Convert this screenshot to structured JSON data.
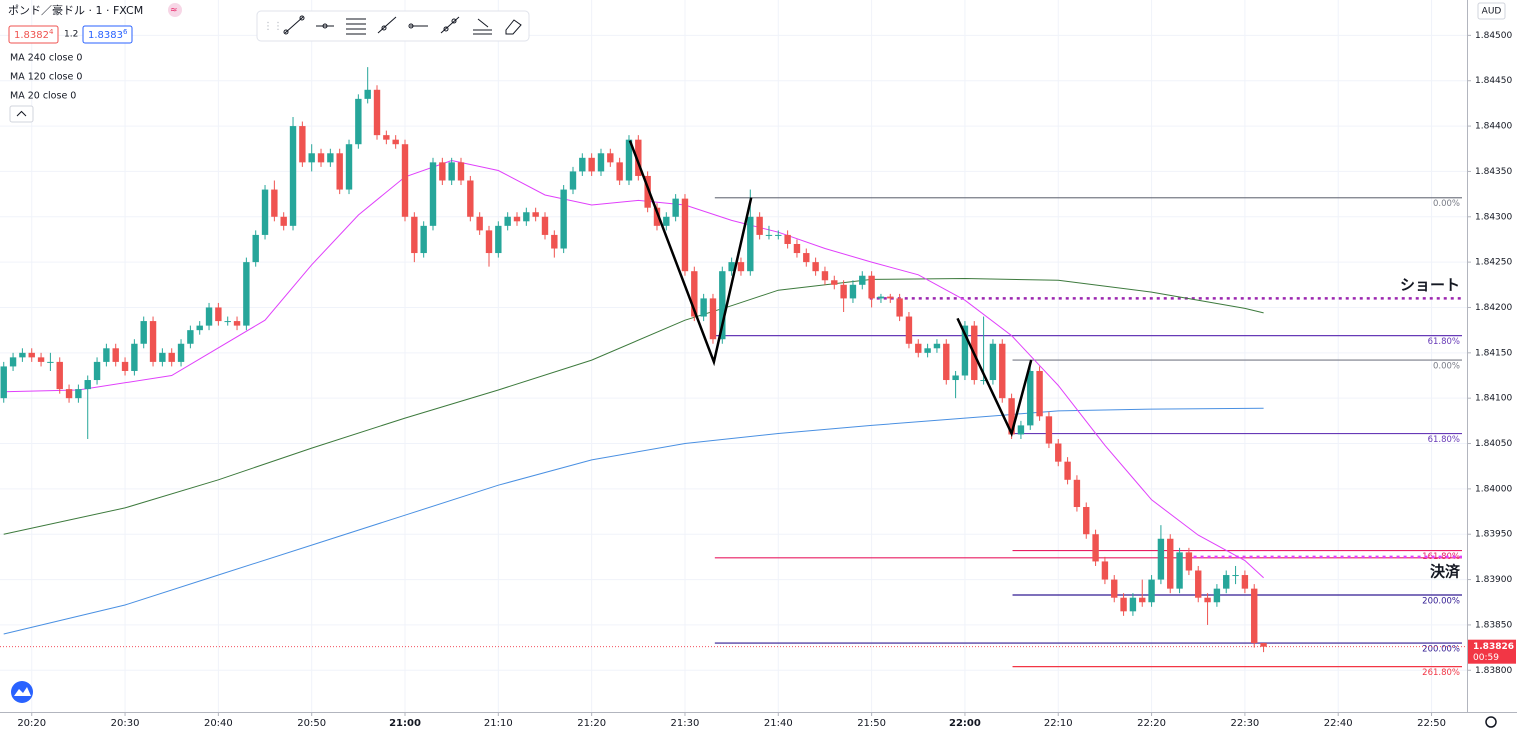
{
  "header": {
    "title": "ポンド／豪ドル · 1 · FXCM",
    "bid": "1.8382",
    "bid_pip": "4",
    "spread": "1.2",
    "ask": "1.8383",
    "ask_pip": "6",
    "indicators": [
      "MA 240 close 0",
      "MA 120 close 0",
      "MA 20 close 0"
    ],
    "currency": "AUD"
  },
  "chart_data": {
    "type": "candlestick",
    "up_color": "#26a69a",
    "down_color": "#ef5350",
    "grid": true,
    "xlim": [
      1216.6,
      1373.8
    ],
    "ylim": [
      1.83754,
      1.84539
    ],
    "xticks": [
      {
        "value": 1220,
        "label": "20:20"
      },
      {
        "value": 1230,
        "label": "20:30"
      },
      {
        "value": 1240,
        "label": "20:40"
      },
      {
        "value": 1250,
        "label": "20:50"
      },
      {
        "value": 1260,
        "label": "21:00"
      },
      {
        "value": 1270,
        "label": "21:10"
      },
      {
        "value": 1280,
        "label": "21:20"
      },
      {
        "value": 1290,
        "label": "21:30"
      },
      {
        "value": 1300,
        "label": "21:40"
      },
      {
        "value": 1310,
        "label": "21:50"
      },
      {
        "value": 1320,
        "label": "22:00"
      },
      {
        "value": 1330,
        "label": "22:10"
      },
      {
        "value": 1340,
        "label": "22:20"
      },
      {
        "value": 1350,
        "label": "22:30"
      },
      {
        "value": 1360,
        "label": "22:40"
      },
      {
        "value": 1370,
        "label": "22:50"
      }
    ],
    "yticks": [
      {
        "value": 1.845,
        "label": "1.84500"
      },
      {
        "value": 1.8445,
        "label": "1.84450"
      },
      {
        "value": 1.844,
        "label": "1.84400"
      },
      {
        "value": 1.8435,
        "label": "1.84350"
      },
      {
        "value": 1.843,
        "label": "1.84300"
      },
      {
        "value": 1.8425,
        "label": "1.84250"
      },
      {
        "value": 1.842,
        "label": "1.84200"
      },
      {
        "value": 1.8415,
        "label": "1.84150"
      },
      {
        "value": 1.841,
        "label": "1.84100"
      },
      {
        "value": 1.8405,
        "label": "1.84050"
      },
      {
        "value": 1.84,
        "label": "1.84000"
      },
      {
        "value": 1.8395,
        "label": "1.83950"
      },
      {
        "value": 1.839,
        "label": "1.83900"
      },
      {
        "value": 1.8385,
        "label": "1.83850"
      },
      {
        "value": 1.838,
        "label": "1.83800"
      }
    ],
    "x": [
      1217,
      1218,
      1219,
      1220,
      1221,
      1222,
      1223,
      1224,
      1225,
      1226,
      1227,
      1228,
      1229,
      1230,
      1231,
      1232,
      1233,
      1234,
      1235,
      1236,
      1237,
      1238,
      1239,
      1240,
      1241,
      1242,
      1243,
      1244,
      1245,
      1246,
      1247,
      1248,
      1249,
      1250,
      1251,
      1252,
      1253,
      1254,
      1255,
      1256,
      1257,
      1258,
      1259,
      1260,
      1261,
      1262,
      1263,
      1264,
      1265,
      1266,
      1267,
      1268,
      1269,
      1270,
      1271,
      1272,
      1273,
      1274,
      1275,
      1276,
      1277,
      1278,
      1279,
      1280,
      1281,
      1282,
      1283,
      1284,
      1285,
      1286,
      1287,
      1288,
      1289,
      1290,
      1291,
      1292,
      1293,
      1294,
      1295,
      1296,
      1297,
      1298,
      1299,
      1300,
      1301,
      1302,
      1303,
      1304,
      1305,
      1306,
      1307,
      1308,
      1309,
      1310,
      1311,
      1312,
      1313,
      1314,
      1315,
      1316,
      1317,
      1318,
      1319,
      1320,
      1321,
      1322,
      1323,
      1324,
      1325,
      1326,
      1327,
      1328,
      1329,
      1330,
      1331,
      1332,
      1333,
      1334,
      1335,
      1336,
      1337,
      1338,
      1339,
      1340,
      1341,
      1342,
      1343,
      1344,
      1345,
      1346,
      1347,
      1348,
      1349,
      1350,
      1351,
      1352
    ],
    "ohlc": [
      [
        1.841,
        1.8414,
        1.84095,
        1.84135
      ],
      [
        1.84135,
        1.8415,
        1.8413,
        1.84145
      ],
      [
        1.84145,
        1.84155,
        1.8414,
        1.8415
      ],
      [
        1.8415,
        1.84155,
        1.8414,
        1.84145
      ],
      [
        1.84145,
        1.8415,
        1.84135,
        1.8414
      ],
      [
        1.8414,
        1.8415,
        1.8413,
        1.8414
      ],
      [
        1.8414,
        1.84145,
        1.84105,
        1.8411
      ],
      [
        1.8411,
        1.84115,
        1.84095,
        1.841
      ],
      [
        1.841,
        1.84115,
        1.84095,
        1.8411
      ],
      [
        1.8411,
        1.84125,
        1.84055,
        1.8412
      ],
      [
        1.8412,
        1.84145,
        1.84115,
        1.8414
      ],
      [
        1.8414,
        1.8416,
        1.84135,
        1.84155
      ],
      [
        1.84155,
        1.8416,
        1.84135,
        1.8414
      ],
      [
        1.8414,
        1.84145,
        1.84125,
        1.8413
      ],
      [
        1.8413,
        1.84165,
        1.84125,
        1.8416
      ],
      [
        1.8416,
        1.8419,
        1.84155,
        1.84185
      ],
      [
        1.84185,
        1.8419,
        1.84135,
        1.8414
      ],
      [
        1.8414,
        1.84155,
        1.84135,
        1.8415
      ],
      [
        1.8415,
        1.84155,
        1.84135,
        1.8414
      ],
      [
        1.8414,
        1.84165,
        1.84135,
        1.8416
      ],
      [
        1.8416,
        1.8418,
        1.84155,
        1.84175
      ],
      [
        1.84175,
        1.84185,
        1.8417,
        1.8418
      ],
      [
        1.8418,
        1.84205,
        1.84175,
        1.842
      ],
      [
        1.842,
        1.84205,
        1.8418,
        1.84185
      ],
      [
        1.84185,
        1.8419,
        1.8418,
        1.84185
      ],
      [
        1.84185,
        1.8419,
        1.84175,
        1.8418
      ],
      [
        1.8418,
        1.84255,
        1.84175,
        1.8425
      ],
      [
        1.8425,
        1.84285,
        1.84245,
        1.8428
      ],
      [
        1.8428,
        1.84335,
        1.84275,
        1.8433
      ],
      [
        1.8433,
        1.8434,
        1.84295,
        1.843
      ],
      [
        1.843,
        1.84305,
        1.84285,
        1.8429
      ],
      [
        1.8429,
        1.8441,
        1.84285,
        1.844
      ],
      [
        1.844,
        1.84405,
        1.84355,
        1.8436
      ],
      [
        1.8436,
        1.8438,
        1.8435,
        1.8437
      ],
      [
        1.8437,
        1.84375,
        1.84355,
        1.8436
      ],
      [
        1.8436,
        1.84375,
        1.84355,
        1.8437
      ],
      [
        1.8437,
        1.84375,
        1.84325,
        1.8433
      ],
      [
        1.8433,
        1.84385,
        1.84325,
        1.8438
      ],
      [
        1.8438,
        1.84435,
        1.84375,
        1.8443
      ],
      [
        1.8443,
        1.84465,
        1.84425,
        1.8444
      ],
      [
        1.8444,
        1.84445,
        1.84385,
        1.8439
      ],
      [
        1.8439,
        1.84395,
        1.8438,
        1.84385
      ],
      [
        1.84385,
        1.8439,
        1.84375,
        1.8438
      ],
      [
        1.8438,
        1.84385,
        1.84295,
        1.843
      ],
      [
        1.843,
        1.84305,
        1.8425,
        1.8426
      ],
      [
        1.8426,
        1.84295,
        1.84255,
        1.8429
      ],
      [
        1.8429,
        1.84365,
        1.84285,
        1.8436
      ],
      [
        1.8436,
        1.84365,
        1.84335,
        1.8434
      ],
      [
        1.8434,
        1.84365,
        1.84335,
        1.8436
      ],
      [
        1.8436,
        1.84365,
        1.84335,
        1.8434
      ],
      [
        1.8434,
        1.84345,
        1.84295,
        1.843
      ],
      [
        1.843,
        1.84305,
        1.8428,
        1.84285
      ],
      [
        1.84285,
        1.8429,
        1.84245,
        1.8426
      ],
      [
        1.8426,
        1.84295,
        1.84255,
        1.8429
      ],
      [
        1.8429,
        1.84305,
        1.84285,
        1.843
      ],
      [
        1.843,
        1.84305,
        1.8429,
        1.84295
      ],
      [
        1.84295,
        1.8431,
        1.8429,
        1.84305
      ],
      [
        1.84305,
        1.8431,
        1.84295,
        1.843
      ],
      [
        1.843,
        1.84305,
        1.84275,
        1.8428
      ],
      [
        1.8428,
        1.84285,
        1.84255,
        1.84265
      ],
      [
        1.84265,
        1.84335,
        1.8426,
        1.8433
      ],
      [
        1.8433,
        1.84355,
        1.84325,
        1.8435
      ],
      [
        1.8435,
        1.8437,
        1.84345,
        1.84365
      ],
      [
        1.84365,
        1.8437,
        1.84345,
        1.8435
      ],
      [
        1.8435,
        1.84375,
        1.84345,
        1.8437
      ],
      [
        1.8437,
        1.84375,
        1.84355,
        1.8436
      ],
      [
        1.8436,
        1.84365,
        1.84335,
        1.8434
      ],
      [
        1.8434,
        1.8439,
        1.84335,
        1.84385
      ],
      [
        1.84385,
        1.8439,
        1.8434,
        1.84345
      ],
      [
        1.84345,
        1.8435,
        1.84305,
        1.8431
      ],
      [
        1.8431,
        1.84315,
        1.84285,
        1.8429
      ],
      [
        1.8429,
        1.84305,
        1.84285,
        1.843
      ],
      [
        1.843,
        1.84325,
        1.84295,
        1.8432
      ],
      [
        1.8432,
        1.84325,
        1.84235,
        1.8424
      ],
      [
        1.8424,
        1.84245,
        1.84185,
        1.8419
      ],
      [
        1.8419,
        1.84215,
        1.84185,
        1.8421
      ],
      [
        1.8421,
        1.84215,
        1.8416,
        1.84165
      ],
      [
        1.84165,
        1.84245,
        1.8416,
        1.8424
      ],
      [
        1.8424,
        1.84255,
        1.84235,
        1.8425
      ],
      [
        1.8425,
        1.84255,
        1.84235,
        1.8424
      ],
      [
        1.8424,
        1.8433,
        1.84235,
        1.843
      ],
      [
        1.843,
        1.84305,
        1.84275,
        1.8428
      ],
      [
        1.8428,
        1.8429,
        1.84275,
        1.8428
      ],
      [
        1.8428,
        1.84285,
        1.84275,
        1.8428
      ],
      [
        1.8428,
        1.84285,
        1.84265,
        1.8427
      ],
      [
        1.8427,
        1.84275,
        1.84255,
        1.8426
      ],
      [
        1.8426,
        1.84265,
        1.84245,
        1.8425
      ],
      [
        1.8425,
        1.84255,
        1.84235,
        1.8424
      ],
      [
        1.8424,
        1.84245,
        1.84225,
        1.8423
      ],
      [
        1.8423,
        1.84235,
        1.8422,
        1.84225
      ],
      [
        1.84225,
        1.8423,
        1.84195,
        1.8421
      ],
      [
        1.8421,
        1.8423,
        1.84205,
        1.84225
      ],
      [
        1.84225,
        1.8424,
        1.8422,
        1.84235
      ],
      [
        1.84235,
        1.8424,
        1.842,
        1.8421
      ],
      [
        1.8421,
        1.84215,
        1.84205,
        1.84212
      ],
      [
        1.84212,
        1.84215,
        1.84205,
        1.8421
      ],
      [
        1.8421,
        1.84215,
        1.84185,
        1.8419
      ],
      [
        1.8419,
        1.84195,
        1.84155,
        1.8416
      ],
      [
        1.8416,
        1.84165,
        1.84145,
        1.8415
      ],
      [
        1.8415,
        1.8416,
        1.84145,
        1.84155
      ],
      [
        1.84155,
        1.84165,
        1.8415,
        1.8416
      ],
      [
        1.8416,
        1.84165,
        1.84115,
        1.8412
      ],
      [
        1.8412,
        1.8413,
        1.841,
        1.84125
      ],
      [
        1.84125,
        1.84185,
        1.8412,
        1.8418
      ],
      [
        1.8418,
        1.84185,
        1.84115,
        1.8412
      ],
      [
        1.8412,
        1.8419,
        1.84115,
        1.8412
      ],
      [
        1.8412,
        1.84165,
        1.84115,
        1.8416
      ],
      [
        1.8416,
        1.84165,
        1.84095,
        1.841
      ],
      [
        1.841,
        1.84105,
        1.84055,
        1.8406
      ],
      [
        1.8406,
        1.84075,
        1.84055,
        1.8407
      ],
      [
        1.8407,
        1.8414,
        1.84065,
        1.8413
      ],
      [
        1.8413,
        1.84135,
        1.84075,
        1.8408
      ],
      [
        1.8408,
        1.84085,
        1.84045,
        1.8405
      ],
      [
        1.8405,
        1.84055,
        1.84025,
        1.8403
      ],
      [
        1.8403,
        1.84035,
        1.84005,
        1.8401
      ],
      [
        1.8401,
        1.84015,
        1.83975,
        1.8398
      ],
      [
        1.8398,
        1.83985,
        1.83945,
        1.8395
      ],
      [
        1.8395,
        1.83955,
        1.83915,
        1.8392
      ],
      [
        1.8392,
        1.83925,
        1.83895,
        1.839
      ],
      [
        1.839,
        1.83905,
        1.83875,
        1.8388
      ],
      [
        1.8388,
        1.83885,
        1.8386,
        1.83865
      ],
      [
        1.83865,
        1.83885,
        1.8386,
        1.8388
      ],
      [
        1.8388,
        1.839,
        1.8387,
        1.83875
      ],
      [
        1.83875,
        1.83905,
        1.8387,
        1.839
      ],
      [
        1.839,
        1.8396,
        1.83895,
        1.83945
      ],
      [
        1.83945,
        1.8395,
        1.83885,
        1.8389
      ],
      [
        1.8389,
        1.83935,
        1.83885,
        1.8393
      ],
      [
        1.8393,
        1.83935,
        1.83905,
        1.8391
      ],
      [
        1.8391,
        1.83915,
        1.83875,
        1.8388
      ],
      [
        1.8388,
        1.83885,
        1.8385,
        1.83875
      ],
      [
        1.83875,
        1.83895,
        1.8387,
        1.8389
      ],
      [
        1.8389,
        1.8391,
        1.83885,
        1.83905
      ],
      [
        1.83905,
        1.83915,
        1.83895,
        1.83905
      ],
      [
        1.83905,
        1.8391,
        1.83885,
        1.8389
      ],
      [
        1.8389,
        1.83895,
        1.83825,
        1.8383
      ],
      [
        1.8383,
        1.8383,
        1.8382,
        1.83826
      ]
    ],
    "series": [
      {
        "name": "MA 240 close 0",
        "color": "#3d7a3d",
        "x": [
          1217,
          1230,
          1240,
          1250,
          1260,
          1270,
          1280,
          1290,
          1295,
          1300,
          1310,
          1320,
          1330,
          1340,
          1350,
          1352
        ],
        "values": [
          1.8395,
          1.83979,
          1.8401,
          1.84045,
          1.84078,
          1.84109,
          1.84142,
          1.84186,
          1.84202,
          1.84219,
          1.84231,
          1.84232,
          1.8423,
          1.84217,
          1.84199,
          1.84194
        ]
      },
      {
        "name": "MA 120 close 0",
        "color": "#4a90e2",
        "x": [
          1217,
          1230,
          1240,
          1250,
          1260,
          1270,
          1280,
          1290,
          1300,
          1310,
          1320,
          1330,
          1340,
          1352
        ],
        "values": [
          1.8384,
          1.83872,
          1.83905,
          1.83938,
          1.83971,
          1.84004,
          1.84032,
          1.8405,
          1.84061,
          1.8407,
          1.84078,
          1.84086,
          1.84088,
          1.84089
        ]
      },
      {
        "name": "MA 20 close 0",
        "color": "#e040fb",
        "x": [
          1217,
          1225,
          1235,
          1245,
          1250,
          1255,
          1260,
          1265,
          1270,
          1275,
          1280,
          1285,
          1290,
          1295,
          1300,
          1305,
          1310,
          1315,
          1320,
          1325,
          1330,
          1335,
          1340,
          1345,
          1350,
          1352
        ],
        "values": [
          1.84107,
          1.84109,
          1.84125,
          1.84186,
          1.84247,
          1.84302,
          1.84344,
          1.84362,
          1.84351,
          1.84324,
          1.84313,
          1.84318,
          1.84313,
          1.84296,
          1.84283,
          1.84265,
          1.8425,
          1.84236,
          1.84208,
          1.84169,
          1.84114,
          1.84048,
          1.83988,
          1.83949,
          1.83921,
          1.83902
        ]
      }
    ],
    "fib_levels": [
      {
        "x": 1293.2,
        "value": 1.84321,
        "label": "0.00%",
        "color": "#787b86"
      },
      {
        "x": 1293.2,
        "value": 1.84169,
        "label": "61.80%",
        "color": "#673ab7"
      },
      {
        "x": 1293.2,
        "value": 1.83924,
        "color": "#e91e63"
      },
      {
        "x": 1293.2,
        "value": 1.8383,
        "label": "200.00%",
        "color": "#311b92"
      },
      {
        "x": 1325.1,
        "value": 1.84142,
        "label": "0.00%",
        "color": "#787b86"
      },
      {
        "x": 1325.1,
        "value": 1.84061,
        "label": "61.80%",
        "color": "#673ab7"
      },
      {
        "x": 1325.1,
        "value": 1.83932,
        "label": "161.80%",
        "color": "#e91e63"
      },
      {
        "x": 1325.1,
        "value": 1.83883,
        "label": "200.00%",
        "color": "#311b92"
      },
      {
        "x": 1325.1,
        "value": 1.83804,
        "label": "261.80%",
        "color": "#f23645"
      }
    ],
    "zigzags": [
      {
        "x": [
          1284.1,
          1293.1,
          1297.1
        ],
        "values": [
          1.84384,
          1.8414,
          1.84321
        ],
        "color": "#000000"
      },
      {
        "x": [
          1319.2,
          1325.0,
          1327.1
        ],
        "values": [
          1.84188,
          1.84061,
          1.84142
        ],
        "color": "#000000"
      }
    ],
    "annotations": [
      {
        "text": "ショート",
        "x": 1309.8,
        "value": 1.8421,
        "color": "#9c27b0"
      },
      {
        "text": "決済",
        "x": 1343.0,
        "value": 1.83925,
        "color": "#e040fb"
      }
    ],
    "last_price": {
      "value": 1.83826,
      "label": "1.83826",
      "countdown": "00:59",
      "color": "#f23645"
    }
  }
}
